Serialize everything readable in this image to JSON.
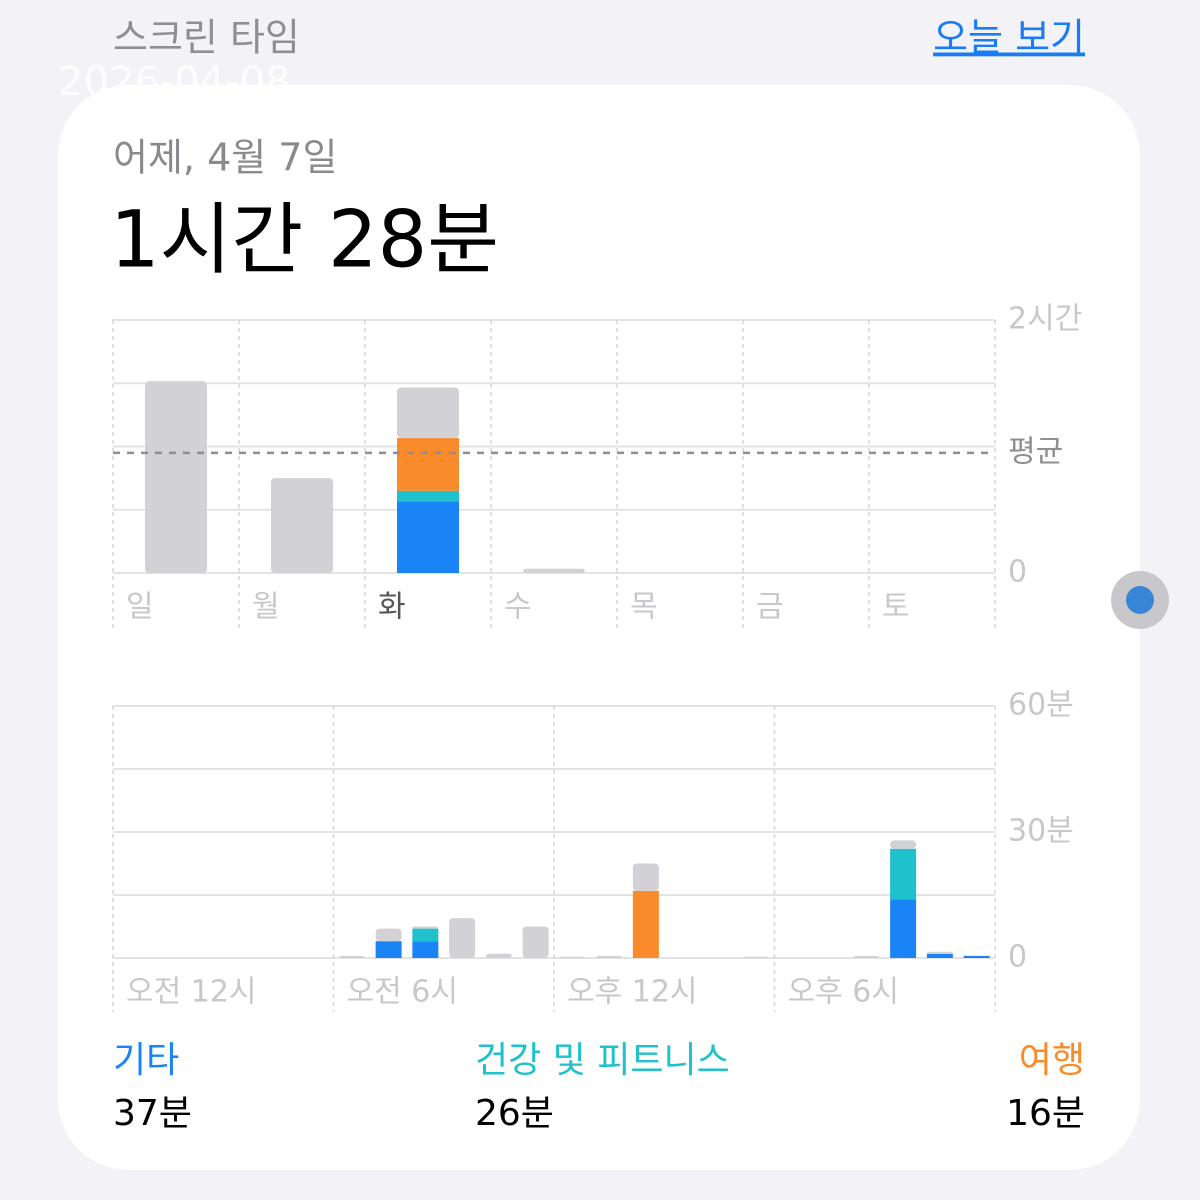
{
  "header": {
    "title": "스크린 타임",
    "link": "오늘 보기"
  },
  "watermark": "2026-04-08",
  "card": {
    "date": "어제, 4월 7일",
    "total": "1시간 28분",
    "categories": [
      {
        "name": "기타",
        "color": "#1a84f7",
        "total": "37분"
      },
      {
        "name": "건강 및 피트니스",
        "color": "#1ec1cc",
        "total": "26분"
      },
      {
        "name": "여행",
        "color": "#f98b2a",
        "total": "16분"
      }
    ],
    "other_color": "#d1d1d6",
    "weekly": {
      "type": "bar",
      "categories": [
        "일",
        "월",
        "화",
        "수",
        "목",
        "금",
        "토"
      ],
      "selected": 2,
      "series": [
        [
          null,
          null,
          34,
          null,
          null,
          null,
          null
        ],
        [
          null,
          null,
          5,
          null,
          null,
          null,
          null
        ],
        [
          null,
          null,
          25,
          null,
          null,
          null,
          null
        ],
        [
          91,
          45,
          24,
          2,
          null,
          null,
          null
        ]
      ],
      "ylim": [
        0,
        120
      ],
      "yticks": [
        0,
        {
          "value": 120,
          "label": "2시간"
        }
      ],
      "grid": [
        30,
        60,
        90
      ],
      "average": {
        "value": 57,
        "label": "평균"
      }
    },
    "hourly": {
      "type": "bar",
      "categories": [
        "오전 12시",
        null,
        null,
        null,
        null,
        null,
        "오전 6시",
        null,
        null,
        null,
        null,
        null,
        "오후 12시",
        null,
        null,
        null,
        null,
        null,
        "오후 6시",
        null,
        null,
        null,
        null,
        null
      ],
      "series": [
        [
          null,
          null,
          null,
          null,
          null,
          null,
          null,
          4,
          4,
          null,
          null,
          null,
          null,
          null,
          null,
          null,
          null,
          null,
          null,
          null,
          null,
          14,
          1,
          0.5
        ],
        [
          null,
          null,
          null,
          null,
          null,
          null,
          null,
          null,
          3,
          null,
          null,
          null,
          null,
          null,
          null,
          null,
          null,
          null,
          null,
          null,
          null,
          12,
          null,
          null
        ],
        [
          null,
          null,
          null,
          null,
          null,
          null,
          null,
          null,
          null,
          null,
          null,
          null,
          null,
          null,
          16,
          null,
          null,
          null,
          null,
          null,
          null,
          null,
          null,
          null
        ],
        [
          null,
          null,
          null,
          null,
          null,
          null,
          0.5,
          3,
          0.5,
          9.5,
          1,
          7.5,
          0.3,
          0.5,
          6.5,
          null,
          null,
          0.3,
          null,
          null,
          0.5,
          2,
          0.5,
          null
        ]
      ],
      "ylim": [
        0,
        60
      ],
      "yticks": [
        0,
        {
          "value": 30,
          "label": "30분"
        },
        {
          "value": 60,
          "label": "60분"
        }
      ],
      "grid": [
        15,
        45
      ]
    }
  }
}
